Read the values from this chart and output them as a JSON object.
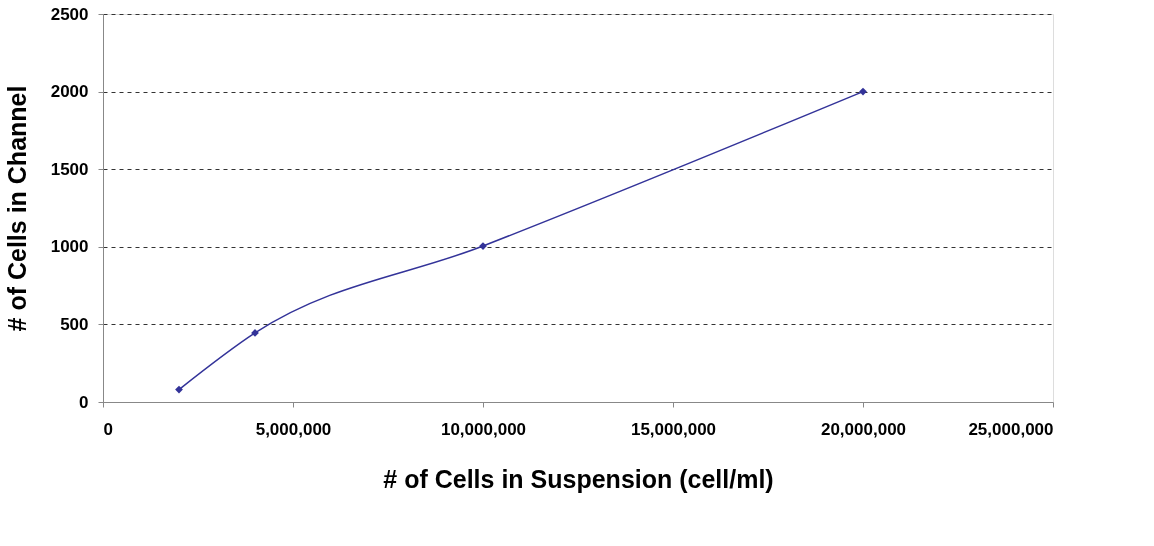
{
  "chart_data": {
    "type": "line",
    "xlabel": "# of Cells in Suspension (cell/ml)",
    "ylabel": "# of Cells in Channel",
    "x": [
      2000000,
      4000000,
      10000000,
      20000000
    ],
    "series": [
      {
        "color": "#333399",
        "values": [
          80,
          445,
          1005,
          2000
        ]
      }
    ],
    "xlim": [
      0,
      25000000
    ],
    "xticks": [
      0,
      {
        "value": 5000000,
        "label": "5,000,000"
      },
      {
        "value": 10000000,
        "label": "10,000,000"
      },
      {
        "value": 15000000,
        "label": "15,000,000"
      },
      {
        "value": 20000000,
        "label": "20,000,000"
      },
      {
        "value": 25000000,
        "label": "25,000,000"
      }
    ],
    "ylim": [
      0,
      2500
    ],
    "yticks": [
      0,
      500,
      1000,
      1500,
      2000,
      2500
    ],
    "grid": "y",
    "marker": "diamond",
    "line_style": "solid"
  }
}
